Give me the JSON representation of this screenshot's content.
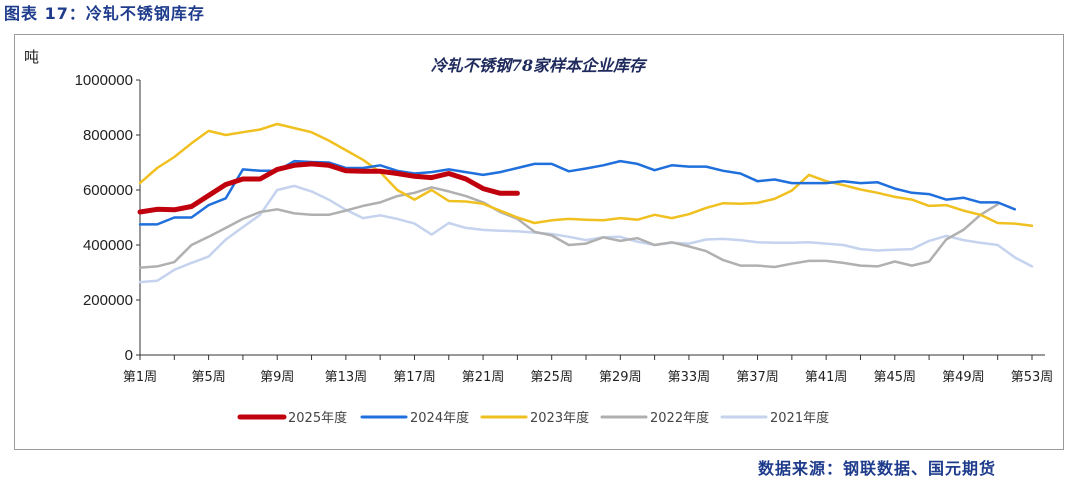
{
  "figure_title": "图表 17：冷轧不锈钢库存",
  "source_note": "数据来源：钢联数据、国元期货",
  "chart_data": {
    "type": "line",
    "title": "冷轧不锈钢78家样本企业库存",
    "ylabel": "吨",
    "xlabel": "",
    "ylim": [
      0,
      1000000
    ],
    "yticks": [
      0,
      200000,
      400000,
      600000,
      800000,
      1000000
    ],
    "xlim": [
      1,
      53
    ],
    "xtick_labels": [
      "第1周",
      "第5周",
      "第9周",
      "第13周",
      "第17周",
      "第21周",
      "第25周",
      "第29周",
      "第33周",
      "第37周",
      "第41周",
      "第45周",
      "第49周",
      "第53周"
    ],
    "xtick_weeks": [
      1,
      5,
      9,
      13,
      17,
      21,
      25,
      29,
      33,
      37,
      41,
      45,
      49,
      53
    ],
    "legend_position": "bottom",
    "grid": false,
    "series": [
      {
        "name": "2025年度",
        "color": "#c0000c",
        "width": 5,
        "values": [
          520000,
          530000,
          528000,
          540000,
          580000,
          620000,
          640000,
          640000,
          675000,
          690000,
          695000,
          690000,
          670000,
          668000,
          668000,
          660000,
          650000,
          645000,
          660000,
          640000,
          605000,
          588000,
          588000
        ]
      },
      {
        "name": "2024年度",
        "color": "#1f6fdc",
        "width": 2.5,
        "values": [
          475000,
          475000,
          500000,
          500000,
          545000,
          570000,
          675000,
          670000,
          670000,
          705000,
          702000,
          700000,
          680000,
          680000,
          690000,
          670000,
          660000,
          665000,
          675000,
          665000,
          655000,
          665000,
          680000,
          695000,
          695000,
          668000,
          678000,
          690000,
          705000,
          695000,
          672000,
          690000,
          685000,
          685000,
          670000,
          660000,
          632000,
          638000,
          625000,
          625000,
          625000,
          632000,
          625000,
          628000,
          605000,
          590000,
          585000,
          565000,
          572000,
          555000,
          555000,
          530000
        ]
      },
      {
        "name": "2023年度",
        "color": "#f0c020",
        "width": 2.5,
        "values": [
          625000,
          680000,
          720000,
          770000,
          815000,
          800000,
          810000,
          820000,
          840000,
          825000,
          810000,
          780000,
          745000,
          710000,
          665000,
          600000,
          565000,
          600000,
          560000,
          558000,
          550000,
          525000,
          500000,
          480000,
          490000,
          495000,
          492000,
          490000,
          498000,
          492000,
          510000,
          498000,
          512000,
          535000,
          552000,
          550000,
          553000,
          568000,
          598000,
          655000,
          632000,
          618000,
          602000,
          590000,
          575000,
          565000,
          542000,
          545000,
          525000,
          510000,
          480000,
          478000,
          470000
        ]
      },
      {
        "name": "2022年度",
        "color": "#b0b0b0",
        "width": 2.5,
        "values": [
          318000,
          322000,
          338000,
          400000,
          430000,
          462000,
          495000,
          520000,
          530000,
          515000,
          510000,
          510000,
          525000,
          542000,
          555000,
          578000,
          590000,
          610000,
          595000,
          578000,
          555000,
          520000,
          495000,
          448000,
          435000,
          400000,
          405000,
          428000,
          415000,
          425000,
          400000,
          410000,
          395000,
          378000,
          345000,
          325000,
          325000,
          320000,
          332000,
          342000,
          342000,
          335000,
          325000,
          322000,
          340000,
          325000,
          340000,
          420000,
          455000,
          510000,
          548000
        ]
      },
      {
        "name": "2021年度",
        "color": "#c5d3ee",
        "width": 2.5,
        "values": [
          265000,
          270000,
          310000,
          335000,
          358000,
          420000,
          465000,
          510000,
          600000,
          615000,
          595000,
          565000,
          528000,
          498000,
          508000,
          495000,
          478000,
          438000,
          480000,
          462000,
          455000,
          452000,
          450000,
          445000,
          440000,
          430000,
          418000,
          428000,
          430000,
          412000,
          400000,
          408000,
          405000,
          420000,
          422000,
          418000,
          410000,
          408000,
          408000,
          410000,
          405000,
          400000,
          385000,
          380000,
          383000,
          385000,
          415000,
          433000,
          418000,
          408000,
          400000,
          355000,
          322000
        ]
      }
    ]
  }
}
